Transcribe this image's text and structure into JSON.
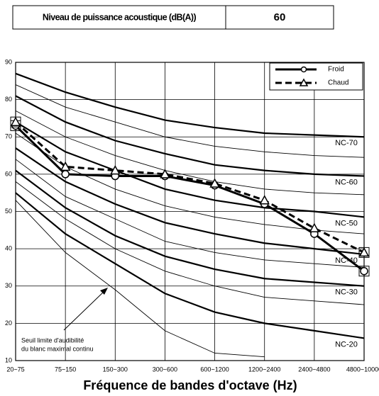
{
  "table": {
    "label": "Niveau de puissance acoustique (dB(A))",
    "value": 60
  },
  "chart_data": {
    "type": "line",
    "categories": [
      "20~75",
      "75~150",
      "150~300",
      "300~600",
      "600~1200",
      "1200~2400",
      "2400~4800",
      "4800~10000"
    ],
    "x_label": "Fréquence de bandes d'octave (Hz)",
    "ylim": [
      10,
      90
    ],
    "yticks": [
      10,
      20,
      30,
      40,
      50,
      60,
      70,
      80,
      90
    ],
    "grid": true,
    "legend": "top-right",
    "annotation": [
      "Seuil limite d'audibilité",
      "du blanc maximal continu"
    ],
    "series": [
      {
        "name": "Froid",
        "color": "#000000",
        "dash": false,
        "marker": "circle",
        "values": [
          73,
          60,
          59.5,
          59.5,
          57,
          52,
          44,
          34
        ]
      },
      {
        "name": "Chaud",
        "color": "#000000",
        "dash": true,
        "marker": "triangle",
        "values": [
          74,
          62,
          61,
          60,
          57.5,
          53,
          45.5,
          39
        ]
      }
    ],
    "reference_curves": [
      {
        "name": "NC-70",
        "style": "thick",
        "values": [
          87,
          82,
          78,
          74.5,
          72.5,
          71,
          70.5,
          70
        ]
      },
      {
        "style": "thin",
        "values": [
          84,
          78,
          74,
          70,
          67.5,
          66,
          65,
          64.5
        ]
      },
      {
        "name": "NC-60",
        "style": "thick",
        "values": [
          81,
          74,
          69,
          65.5,
          62.5,
          61,
          60,
          59.5
        ]
      },
      {
        "style": "thin",
        "values": [
          77,
          70,
          65,
          61,
          58,
          56,
          55,
          54.5
        ]
      },
      {
        "name": "NC-50",
        "style": "thick",
        "values": [
          74,
          66,
          61,
          56,
          53,
          51,
          50,
          48.5
        ]
      },
      {
        "style": "thin",
        "values": [
          71,
          62,
          56,
          51.5,
          48.5,
          46.5,
          45,
          44
        ]
      },
      {
        "name": "NC-40",
        "style": "thick",
        "values": [
          67,
          58,
          52,
          47,
          44,
          41.5,
          40,
          38.5
        ]
      },
      {
        "style": "thin",
        "values": [
          64,
          54,
          48,
          42,
          39,
          37,
          36,
          35
        ]
      },
      {
        "name": "NC-30",
        "style": "thick",
        "values": [
          61,
          51,
          43.5,
          38,
          34.5,
          32,
          31,
          30
        ]
      },
      {
        "style": "thin",
        "values": [
          58,
          48,
          40,
          34,
          30,
          27,
          26,
          25
        ]
      },
      {
        "name": "NC-20",
        "style": "thick",
        "values": [
          55,
          44,
          36,
          28,
          23,
          20,
          18,
          16
        ]
      },
      {
        "style": "thin",
        "values": [
          53,
          39,
          29,
          18,
          12,
          11,
          null,
          null
        ]
      }
    ]
  }
}
